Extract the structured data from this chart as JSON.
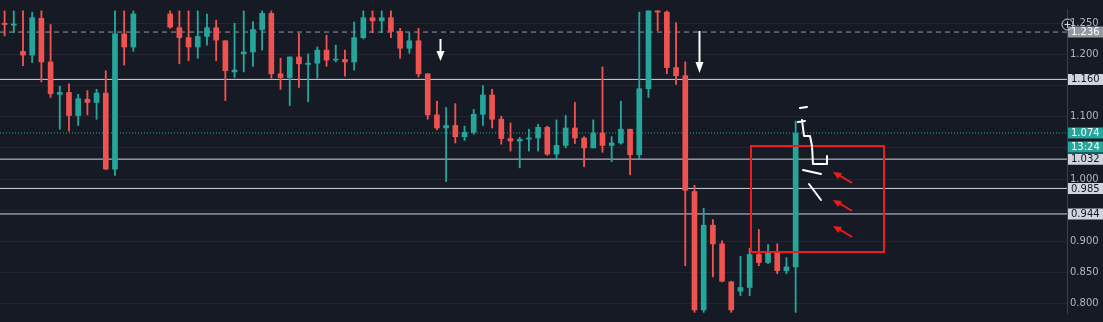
{
  "chart_data": {
    "type": "candlestick",
    "categories": [
      null,
      null,
      null,
      null,
      null,
      null,
      null,
      null,
      null,
      null,
      null,
      null,
      null,
      null,
      null,
      null,
      null,
      null,
      null,
      null,
      null,
      null,
      null,
      null,
      null,
      null,
      null,
      null,
      null,
      null,
      null,
      null,
      null,
      null,
      null,
      null,
      null,
      null,
      null,
      null,
      null,
      null,
      null,
      null,
      null,
      null,
      null,
      null,
      null,
      null,
      null,
      null,
      null,
      null,
      null,
      null,
      null,
      null,
      null,
      null,
      null,
      null,
      null,
      null,
      null,
      null,
      null,
      null,
      null,
      null,
      null,
      null,
      null,
      null,
      null,
      null,
      null,
      null,
      null,
      null,
      null,
      null,
      null,
      null,
      null,
      null,
      null,
      null,
      null,
      null,
      null,
      null,
      null,
      null,
      null,
      null,
      null,
      null,
      null,
      null,
      null,
      null,
      null,
      null,
      null,
      null,
      null,
      null,
      null,
      null,
      null,
      null,
      null,
      null,
      null,
      null
    ],
    "ohlc": [
      [
        1.25,
        1.27,
        1.23,
        1.248
      ],
      [
        1.247,
        1.27,
        1.235,
        1.249
      ],
      [
        1.205,
        1.27,
        1.182,
        1.199
      ],
      [
        1.199,
        1.268,
        1.187,
        1.259
      ],
      [
        1.258,
        1.27,
        1.156,
        1.188
      ],
      [
        1.188,
        1.248,
        1.131,
        1.137
      ],
      [
        1.136,
        1.149,
        1.08,
        1.139
      ],
      [
        1.139,
        1.153,
        1.077,
        1.102
      ],
      [
        1.102,
        1.136,
        1.086,
        1.129
      ],
      [
        1.128,
        1.142,
        1.103,
        1.123
      ],
      [
        1.123,
        1.144,
        1.096,
        1.138
      ],
      [
        1.138,
        1.174,
        1.015,
        1.016
      ],
      [
        1.016,
        1.27,
        1.006,
        1.233
      ],
      [
        1.233,
        1.27,
        1.183,
        1.212
      ],
      [
        1.212,
        1.27,
        1.205,
        1.265
      ],
      null,
      null,
      null,
      [
        1.265,
        1.27,
        1.242,
        1.244
      ],
      [
        1.243,
        1.27,
        1.185,
        1.227
      ],
      [
        1.227,
        1.27,
        1.19,
        1.212
      ],
      [
        1.212,
        1.27,
        1.194,
        1.229
      ],
      [
        1.229,
        1.265,
        1.215,
        1.243
      ],
      [
        1.243,
        1.255,
        1.19,
        1.223
      ],
      [
        1.222,
        1.222,
        1.126,
        1.174
      ],
      [
        1.172,
        1.25,
        1.163,
        1.175
      ],
      [
        1.201,
        1.27,
        1.172,
        1.204
      ],
      [
        1.204,
        1.253,
        1.181,
        1.24
      ],
      [
        1.24,
        1.27,
        1.207,
        1.266
      ],
      [
        1.266,
        1.27,
        1.162,
        1.169
      ],
      [
        1.169,
        1.194,
        1.144,
        1.163
      ],
      [
        1.163,
        1.196,
        1.118,
        1.196
      ],
      [
        1.196,
        1.234,
        1.147,
        1.185
      ],
      [
        1.184,
        1.201,
        1.124,
        1.186
      ],
      [
        1.186,
        1.212,
        1.162,
        1.207
      ],
      [
        1.207,
        1.231,
        1.181,
        1.191
      ],
      [
        1.191,
        1.215,
        1.188,
        1.192
      ],
      [
        1.192,
        1.207,
        1.165,
        1.188
      ],
      [
        1.188,
        1.252,
        1.175,
        1.227
      ],
      [
        1.227,
        1.27,
        1.225,
        1.259
      ],
      [
        1.259,
        1.27,
        1.235,
        1.254
      ],
      [
        1.254,
        1.27,
        1.235,
        1.259
      ],
      [
        1.259,
        1.27,
        1.227,
        1.237
      ],
      [
        1.237,
        1.242,
        1.194,
        1.21
      ],
      [
        1.21,
        1.235,
        1.202,
        1.222
      ],
      [
        1.222,
        1.242,
        1.164,
        1.169
      ],
      [
        1.169,
        1.169,
        1.096,
        1.103
      ],
      [
        1.103,
        1.125,
        1.079,
        1.082
      ],
      [
        1.082,
        1.115,
        0.996,
        1.086
      ],
      [
        1.086,
        1.121,
        1.058,
        1.068
      ],
      [
        1.068,
        1.085,
        1.062,
        1.075
      ],
      [
        1.075,
        1.112,
        1.072,
        1.104
      ],
      [
        1.104,
        1.15,
        1.086,
        1.135
      ],
      [
        1.135,
        1.144,
        1.082,
        1.096
      ],
      [
        1.096,
        1.101,
        1.056,
        1.065
      ],
      [
        1.065,
        1.09,
        1.045,
        1.061
      ],
      [
        1.061,
        1.067,
        1.018,
        1.064
      ],
      [
        1.064,
        1.08,
        1.045,
        1.066
      ],
      [
        1.066,
        1.088,
        1.045,
        1.083
      ],
      [
        1.083,
        1.085,
        1.038,
        1.04
      ],
      [
        1.04,
        1.095,
        1.033,
        1.054
      ],
      [
        1.054,
        1.102,
        1.05,
        1.082
      ],
      [
        1.082,
        1.123,
        1.057,
        1.066
      ],
      [
        1.066,
        1.068,
        1.02,
        1.05
      ],
      [
        1.05,
        1.095,
        1.05,
        1.074
      ],
      [
        1.074,
        1.18,
        1.043,
        1.054
      ],
      [
        1.054,
        1.068,
        1.028,
        1.058
      ],
      [
        1.058,
        1.125,
        1.056,
        1.08
      ],
      [
        1.08,
        1.08,
        1.007,
        1.039
      ],
      [
        1.039,
        1.268,
        1.033,
        1.145
      ],
      [
        1.145,
        1.27,
        1.131,
        1.27
      ],
      [
        1.27,
        1.27,
        1.238,
        1.268
      ],
      [
        1.268,
        1.27,
        1.169,
        1.179
      ],
      [
        1.179,
        1.251,
        1.152,
        1.166
      ],
      [
        1.166,
        1.188,
        0.861,
        0.982
      ],
      [
        0.98,
        0.99,
        0.786,
        0.79
      ],
      [
        0.79,
        0.953,
        0.786,
        0.926
      ],
      [
        0.926,
        0.935,
        0.843,
        0.896
      ],
      [
        0.896,
        0.901,
        0.835,
        0.836
      ],
      [
        0.835,
        0.836,
        0.786,
        0.79
      ],
      [
        0.82,
        0.876,
        0.813,
        0.826
      ],
      [
        0.826,
        0.889,
        0.813,
        0.879
      ],
      [
        0.879,
        0.919,
        0.861,
        0.866
      ],
      [
        0.866,
        0.895,
        0.864,
        0.884
      ],
      [
        0.884,
        0.896,
        0.848,
        0.853
      ],
      [
        0.853,
        0.874,
        0.848,
        0.859
      ],
      [
        0.859,
        1.093,
        0.786,
        1.074
      ],
      null,
      null,
      null,
      null,
      null,
      null,
      null,
      null,
      null,
      null,
      null,
      null,
      null,
      null,
      null,
      null,
      null,
      null,
      null,
      null,
      null,
      null,
      null,
      null,
      null,
      null,
      null,
      null,
      null
    ],
    "colors": [
      "#ef5350",
      "#26a69a",
      "#ef5350",
      "#26a69a",
      "#ef5350",
      "#ef5350",
      "#26a69a",
      "#ef5350",
      "#26a69a",
      "#ef5350",
      "#26a69a",
      "#ef5350",
      "#26a69a",
      "#ef5350",
      "#26a69a",
      null,
      null,
      null,
      "#ef5350",
      "#ef5350",
      "#ef5350",
      "#26a69a",
      "#26a69a",
      "#ef5350",
      "#ef5350",
      "#26a69a",
      "#26a69a",
      "#26a69a",
      "#26a69a",
      "#ef5350",
      "#ef5350",
      "#26a69a",
      "#ef5350",
      "#26a69a",
      "#26a69a",
      "#ef5350",
      "#26a69a",
      "#ef5350",
      "#26a69a",
      "#26a69a",
      "#ef5350",
      "#26a69a",
      "#ef5350",
      "#ef5350",
      "#26a69a",
      "#ef5350",
      "#ef5350",
      "#ef5350",
      "#26a69a",
      "#ef5350",
      "#26a69a",
      "#26a69a",
      "#26a69a",
      "#ef5350",
      "#ef5350",
      "#ef5350",
      "#26a69a",
      "#26a69a",
      "#26a69a",
      "#ef5350",
      "#26a69a",
      "#26a69a",
      "#ef5350",
      "#ef5350",
      "#26a69a",
      "#ef5350",
      "#26a69a",
      "#26a69a",
      "#ef5350",
      "#26a69a",
      "#26a69a",
      "#ef5350",
      "#ef5350",
      "#ef5350",
      "#ef5350",
      "#ef5350",
      "#26a69a",
      "#ef5350",
      "#ef5350",
      "#ef5350",
      "#26a69a",
      "#26a69a",
      "#ef5350",
      "#26a69a",
      "#ef5350",
      "#26a69a",
      "#26a69a",
      null,
      null,
      null,
      null,
      null,
      null,
      null,
      null,
      null,
      null,
      null,
      null,
      null,
      null,
      null,
      null,
      null,
      null,
      null,
      null,
      null,
      null,
      null,
      null,
      null,
      null,
      null,
      null,
      null
    ],
    "ylim": [
      0.785,
      1.273
    ],
    "yticks": [
      {
        "value": 0.8,
        "label": "0.800"
      },
      {
        "value": 0.85,
        "label": "0.850"
      },
      {
        "value": 0.9,
        "label": "0.900"
      },
      {
        "value": 0.95,
        "label": null
      },
      {
        "value": 1.0,
        "label": "1.000"
      },
      {
        "value": 1.05,
        "label": null
      },
      {
        "value": 1.1,
        "label": "1.100"
      },
      {
        "value": 1.15,
        "label": null
      },
      {
        "value": 1.2,
        "label": "1.200"
      },
      {
        "value": 1.25,
        "label": "1.250"
      }
    ],
    "ref_lines": [
      {
        "axis": "y",
        "value": 1.236,
        "label": "1.236",
        "color": "#9598a1",
        "line_style": "dashed"
      },
      {
        "axis": "y",
        "value": 1.16,
        "label": "1.160",
        "color": "#d1d4dc",
        "line_style": "solid"
      },
      {
        "axis": "y",
        "value": 1.074,
        "label": "1.074",
        "color": "#26a69a",
        "line_style": "dotted"
      },
      {
        "axis": "y",
        "value": 1.032,
        "label": "1.032",
        "color": "#d1d4dc",
        "line_style": "solid"
      },
      {
        "axis": "y",
        "value": 0.985,
        "label": "0.985",
        "color": "#d1d4dc",
        "line_style": "solid"
      },
      {
        "axis": "y",
        "value": 0.944,
        "label": "0.944",
        "color": "#d1d4dc",
        "line_style": "solid"
      }
    ],
    "annotations": [
      "13:24"
    ],
    "grid": "y",
    "tick_labels": "y",
    "legend": false
  }
}
